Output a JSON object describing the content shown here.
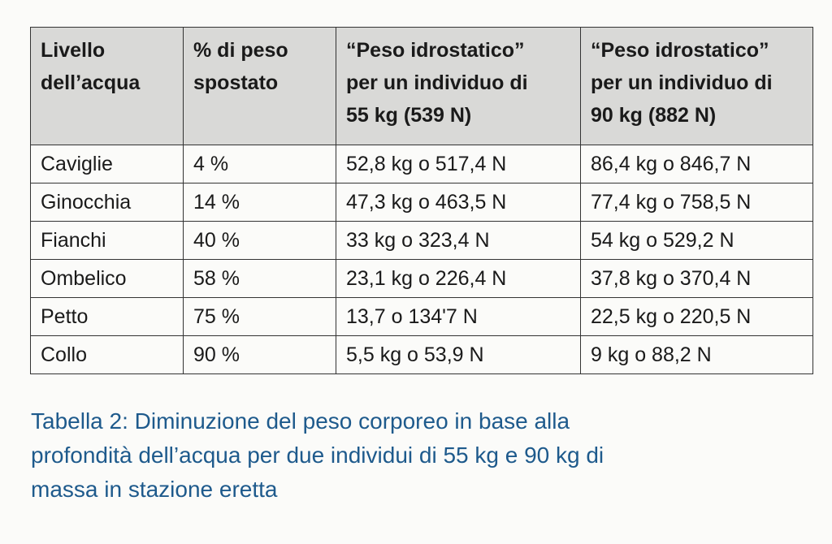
{
  "table": {
    "header": [
      [
        "Livello",
        "dell’acqua"
      ],
      [
        "% di peso",
        "spostato"
      ],
      [
        "“Peso idrostatico”",
        "per un individuo di",
        "55 kg (539 N)"
      ],
      [
        "“Peso idrostatico”",
        "per un individuo di",
        "90 kg (882 N)"
      ]
    ],
    "rows": [
      [
        "Caviglie",
        "4 %",
        "52,8 kg o 517,4 N",
        "86,4 kg o 846,7 N"
      ],
      [
        "Ginocchia",
        "14 %",
        "47,3 kg o 463,5 N",
        "77,4 kg o 758,5 N"
      ],
      [
        "Fianchi",
        "40 %",
        "33 kg o 323,4 N",
        "54 kg o 529,2 N"
      ],
      [
        "Ombelico",
        "58 %",
        "23,1 kg o 226,4 N",
        "37,8 kg o 370,4 N"
      ],
      [
        "Petto",
        "75 %",
        "13,7 o 134'7 N",
        "22,5 kg o 220,5 N"
      ],
      [
        "Collo",
        "90 %",
        "5,5 kg o 53,9 N",
        "9 kg o 88,2 N"
      ]
    ]
  },
  "caption": [
    "Tabella 2: Diminuzione del peso corporeo in base alla",
    "profondità dell’acqua per due individui di 55 kg e 90 kg di",
    "massa in stazione eretta"
  ]
}
